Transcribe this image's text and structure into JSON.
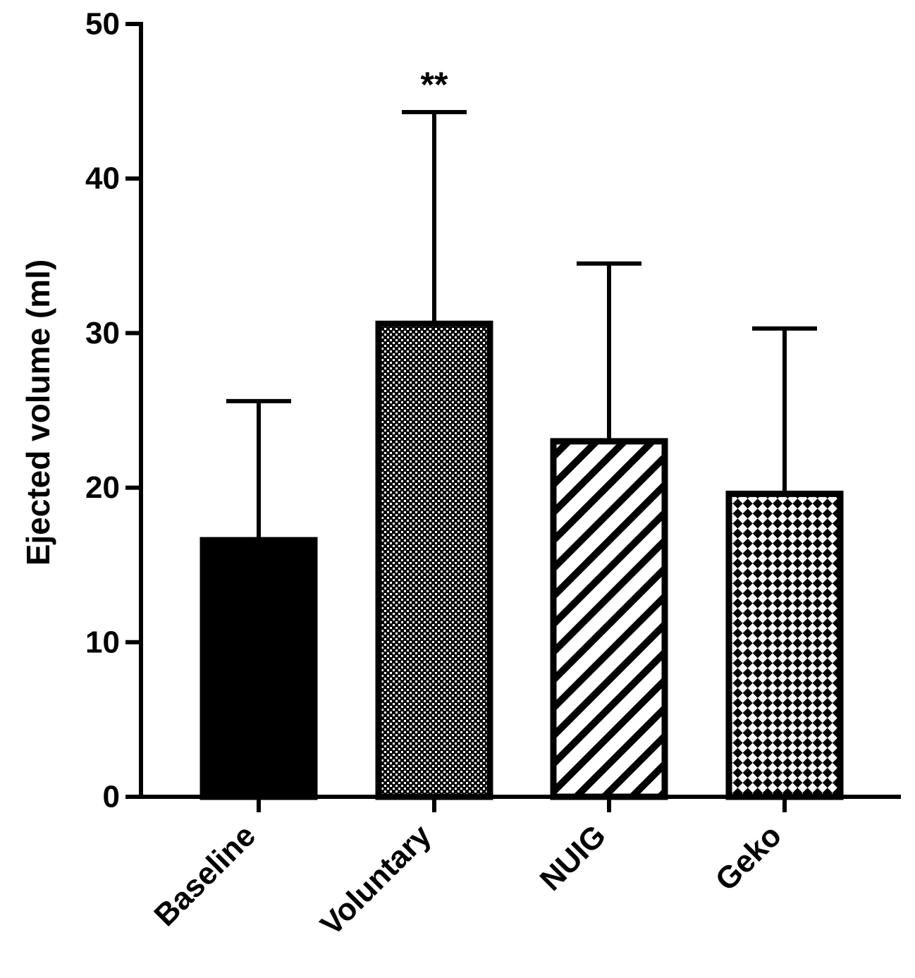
{
  "chart_data": {
    "type": "bar",
    "title": "",
    "xlabel": "",
    "ylabel": "Ejected volume (ml)",
    "ylim": [
      0,
      50
    ],
    "yticks": [
      0,
      10,
      20,
      30,
      40,
      50
    ],
    "categories": [
      "Baseline",
      "Voluntary",
      "NUIG",
      "Geko"
    ],
    "values": [
      16.6,
      30.6,
      23.0,
      19.6
    ],
    "error_upper": [
      25.6,
      44.3,
      34.5,
      30.3
    ],
    "patterns": [
      "solid",
      "dots",
      "diagonal-stripes",
      "checker"
    ],
    "annotations": [
      {
        "category": "Voluntary",
        "text": "**"
      }
    ],
    "grid": false,
    "colors": {
      "bar_edge": "#000000",
      "fill": "#000000",
      "background": "#ffffff"
    }
  }
}
